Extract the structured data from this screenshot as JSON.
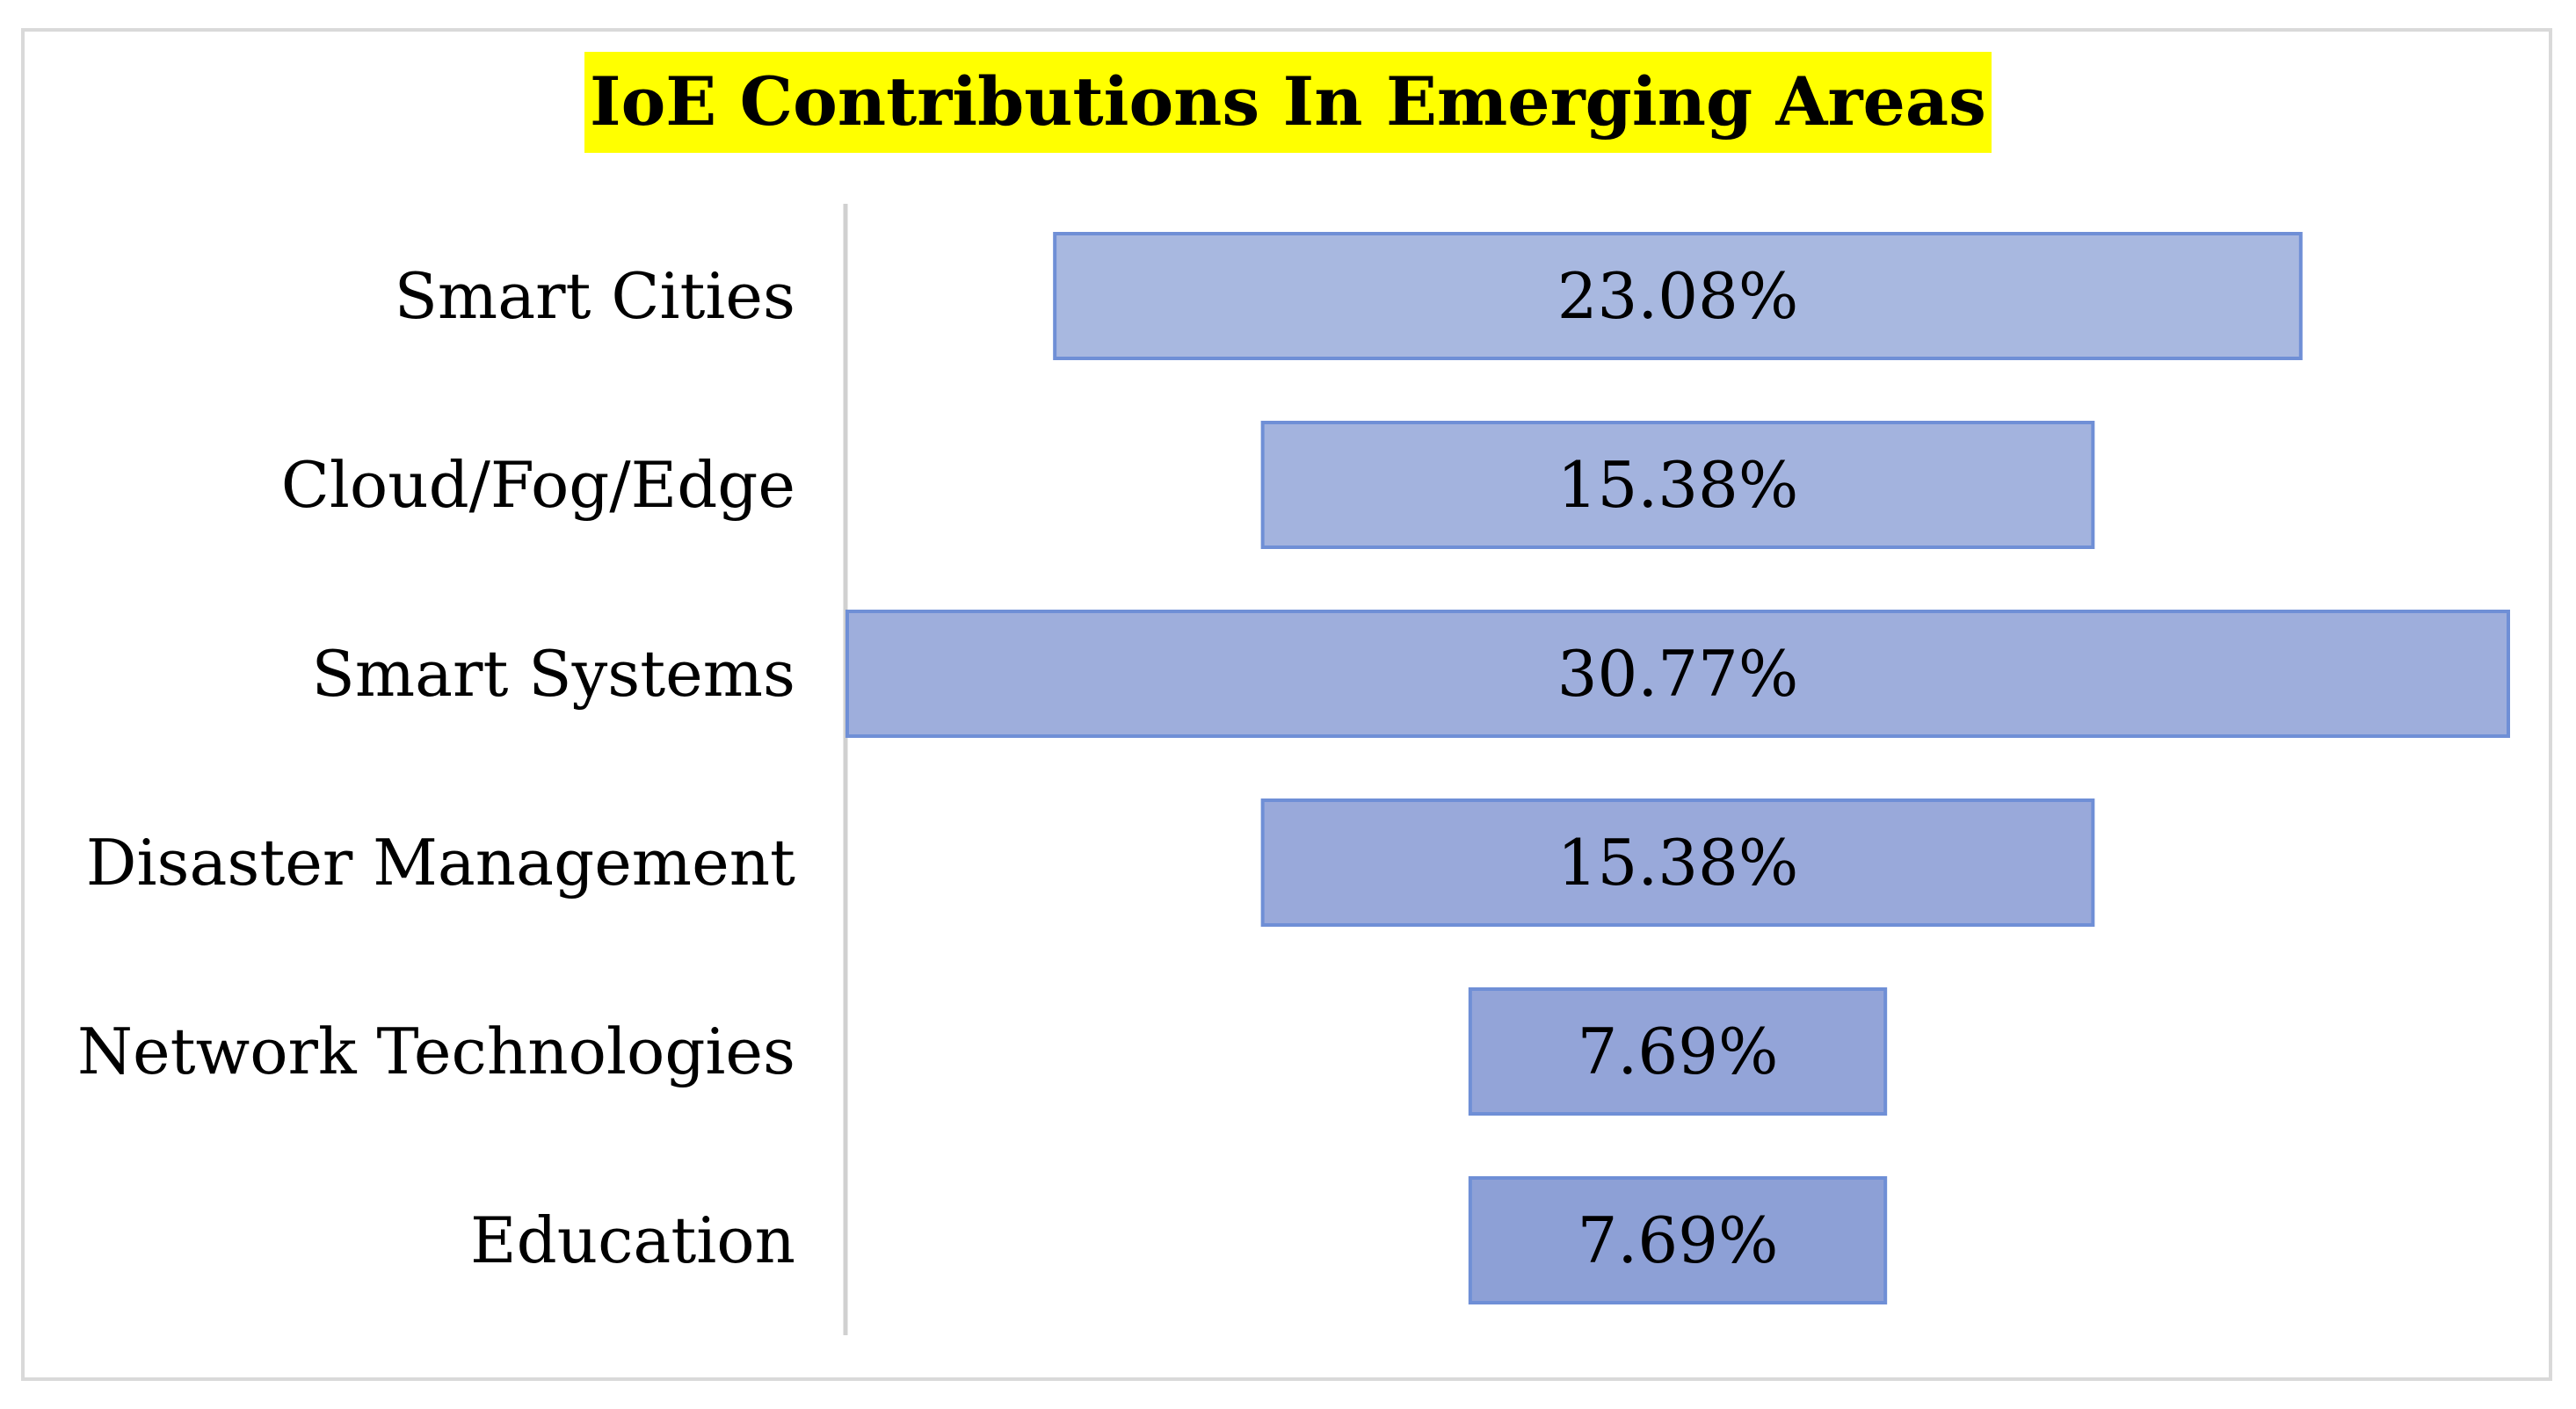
{
  "chart_data": {
    "type": "bar",
    "orientation": "horizontal",
    "style": "funnel",
    "title": "IoE Contributions In Emerging Areas",
    "categories": [
      "Smart Cities",
      "Cloud/Fog/Edge",
      "Smart Systems",
      "Disaster Management",
      "Network Technologies",
      "Education"
    ],
    "values": [
      23.08,
      15.38,
      30.77,
      15.38,
      7.69,
      7.69
    ],
    "value_labels": [
      "23.08%",
      "15.38%",
      "30.77%",
      "15.38%",
      "7.69%",
      "7.69%"
    ],
    "unit": "%",
    "xlabel": "",
    "ylabel": "",
    "grid": false,
    "legend": "none",
    "colors": {
      "title_highlight": "#ffff00",
      "bar_fills": [
        "#a8b8e0",
        "#a3b3de",
        "#9eaedc",
        "#99a9da",
        "#93a4d8",
        "#8da0d6"
      ],
      "bar_stroke": "#6f8fd6",
      "axis": "#d0d0d0",
      "frame": "#d9d9d9"
    }
  }
}
